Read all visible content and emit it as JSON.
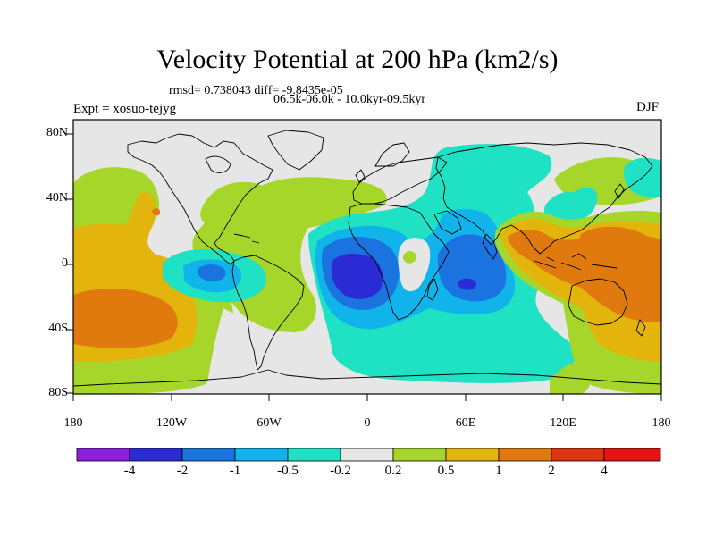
{
  "title": "Velocity Potential at 200 hPa (km2/s)",
  "stats": "rmsd= 0.738043  diff= -9.8435e-05",
  "period": "06.5k-06.0k - 10.0kyr-09.5kyr",
  "experiment": "Expt = xosuo-tejyg",
  "season": "DJF",
  "axes": {
    "x_ticks": [
      "180",
      "120W",
      "60W",
      "0",
      "60E",
      "120E",
      "180"
    ],
    "y_ticks": [
      "80N",
      "40N",
      "0",
      "40S",
      "80S"
    ]
  },
  "colorbar": {
    "labels": [
      "-4",
      "-2",
      "-1",
      "-0.5",
      "-0.2",
      "0.2",
      "0.5",
      "1",
      "2",
      "4"
    ],
    "colors": [
      "#8c1fe0",
      "#2b2bd6",
      "#1b73e0",
      "#10b4ea",
      "#1fe2c4",
      "#e6e6e6",
      "#a6d62a",
      "#e2b40c",
      "#e07a0e",
      "#e03412",
      "#e81212"
    ]
  },
  "colors": {
    "neutral": "#e6e6e6",
    "coast": "#000000"
  }
}
